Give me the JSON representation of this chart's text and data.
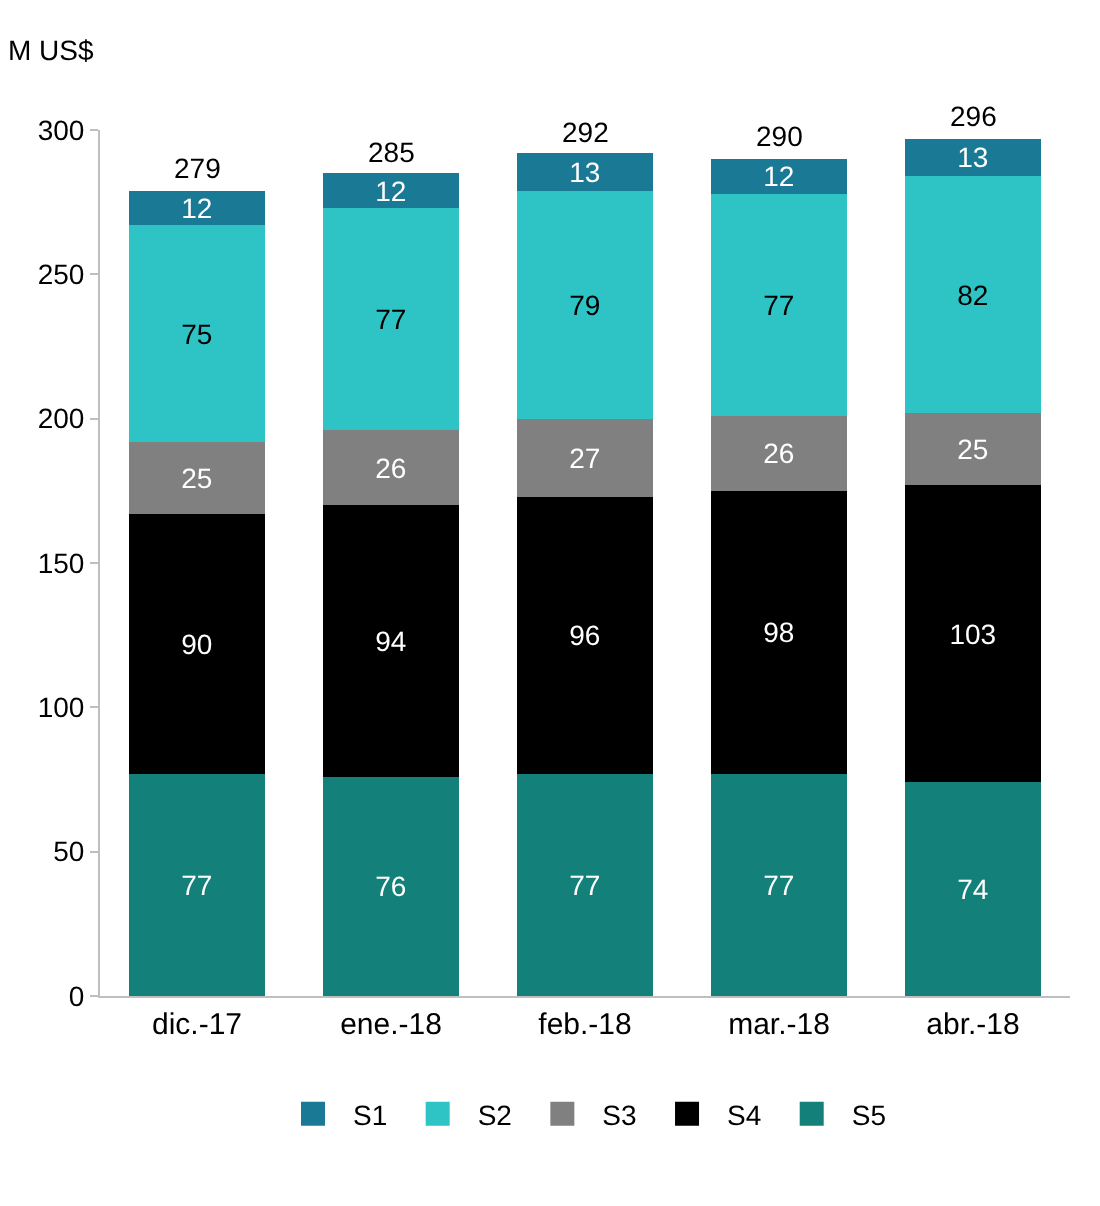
{
  "chart_data": {
    "type": "bar",
    "stacked": true,
    "ylabel": "M US$",
    "categories": [
      "dic.-17",
      "ene.-18",
      "feb.-18",
      "mar.-18",
      "abr.-18"
    ],
    "series": [
      {
        "name": "S5",
        "color": "#138079",
        "values": [
          77,
          76,
          77,
          77,
          74
        ]
      },
      {
        "name": "S4",
        "color": "#000000",
        "values": [
          90,
          94,
          96,
          98,
          103
        ]
      },
      {
        "name": "S3",
        "color": "#808080",
        "values": [
          25,
          26,
          27,
          26,
          25
        ]
      },
      {
        "name": "S2",
        "color": "#2ec4c6",
        "values": [
          75,
          77,
          79,
          77,
          82
        ]
      },
      {
        "name": "S1",
        "color": "#1a7a96",
        "values": [
          12,
          12,
          13,
          12,
          13
        ]
      }
    ],
    "totals": [
      "279",
      "285",
      "292",
      "290",
      "296"
    ],
    "ylim": [
      0,
      300
    ],
    "yticks": [
      0,
      50,
      100,
      150,
      200,
      250,
      300
    ],
    "data_labels": true,
    "grid": false,
    "legend": "bottom"
  }
}
